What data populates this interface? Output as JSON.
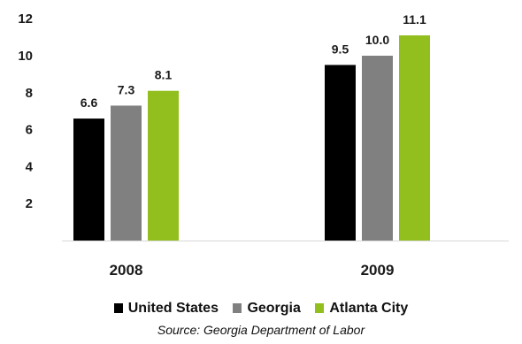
{
  "chart_data": {
    "type": "bar",
    "categories": [
      "2008",
      "2009"
    ],
    "series": [
      {
        "name": "United States",
        "values": [
          6.6,
          9.5
        ],
        "color": "#000000"
      },
      {
        "name": "Georgia",
        "values": [
          7.3,
          10.0
        ],
        "color": "#808080"
      },
      {
        "name": "Atlanta City",
        "values": [
          8.1,
          11.1
        ],
        "color": "#92bf1d"
      }
    ],
    "value_labels": [
      [
        "6.6",
        "9.5"
      ],
      [
        "7.3",
        "10.0"
      ],
      [
        "8.1",
        "11.1"
      ]
    ],
    "yticks": [
      2,
      4,
      6,
      8,
      10,
      12
    ],
    "ylim": [
      0,
      12
    ],
    "grid": false,
    "legend_position": "bottom",
    "title": "",
    "xlabel": "",
    "ylabel": ""
  },
  "source": "Source: Georgia Department of Labor"
}
